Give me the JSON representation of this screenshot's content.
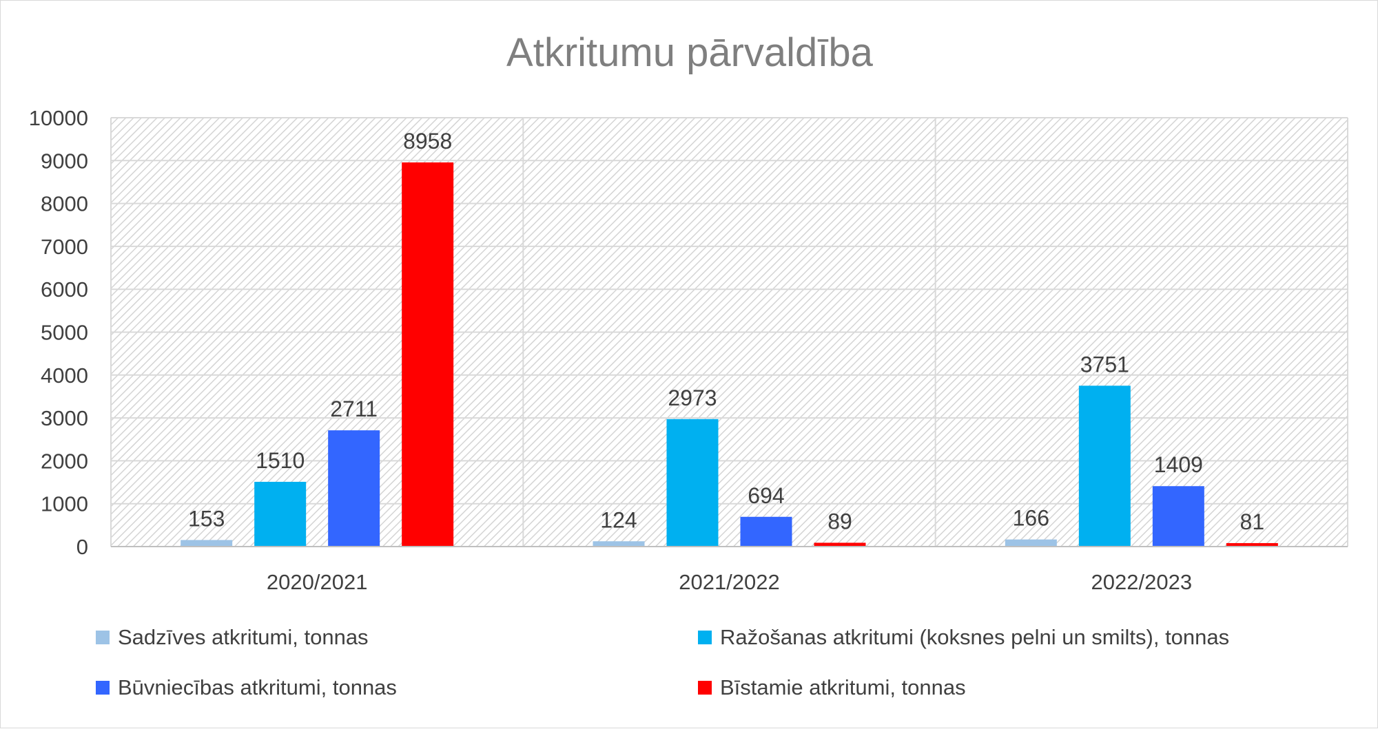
{
  "chart_data": {
    "type": "bar",
    "title": "Atkritumu pārvaldība",
    "xlabel": "",
    "ylabel": "",
    "ylim": [
      0,
      10000
    ],
    "yticks": [
      0,
      1000,
      2000,
      3000,
      4000,
      5000,
      6000,
      7000,
      8000,
      9000,
      10000
    ],
    "grid": true,
    "legend_position": "bottom",
    "categories": [
      "2020/2021",
      "2021/2022",
      "2022/2023"
    ],
    "series": [
      {
        "name": "Sadzīves atkritumi, tonnas",
        "color": "#9dc3e6",
        "values": [
          153,
          124,
          166
        ]
      },
      {
        "name": "Ražošanas atkritumi (koksnes pelni un smilts), tonnas",
        "color": "#00b0f0",
        "values": [
          1510,
          2973,
          3751
        ]
      },
      {
        "name": "Būvniecības atkritumi, tonnas",
        "color": "#3366ff",
        "values": [
          2711,
          694,
          1409
        ]
      },
      {
        "name": "Bīstamie atkritumi, tonnas",
        "color": "#ff0000",
        "values": [
          8958,
          89,
          81
        ]
      }
    ]
  }
}
